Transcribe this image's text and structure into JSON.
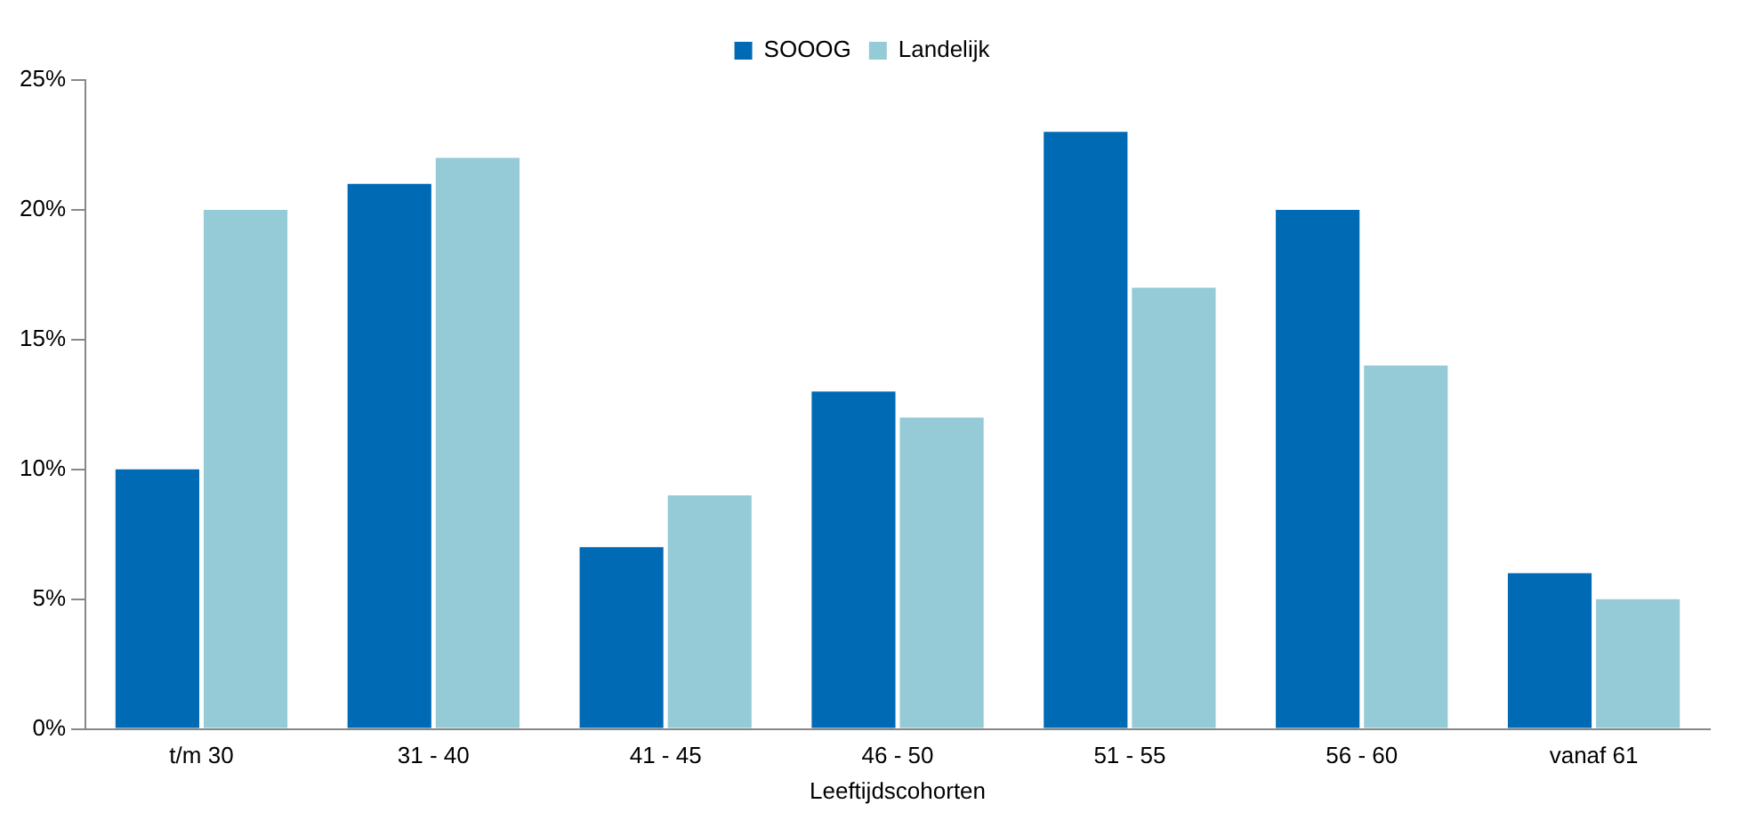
{
  "chart_data": {
    "type": "bar",
    "xlabel": "Leeftijdscohorten",
    "categories": [
      "t/m 30",
      "31 - 40",
      "41 - 45",
      "46 - 50",
      "51 - 55",
      "56 - 60",
      "vanaf 61"
    ],
    "series": [
      {
        "name": "SOOOG",
        "color": "#006ab4",
        "values": [
          10,
          21,
          7,
          13,
          23,
          20,
          6
        ]
      },
      {
        "name": "Landelijk",
        "color": "#95cad7",
        "values": [
          20,
          22,
          9,
          12,
          17,
          14,
          5
        ]
      }
    ],
    "ylim": [
      0,
      25
    ],
    "yticks": [
      {
        "value": 0,
        "label": "0%"
      },
      {
        "value": 5,
        "label": "5%"
      },
      {
        "value": 10,
        "label": "10%"
      },
      {
        "value": 15,
        "label": "15%"
      },
      {
        "value": 20,
        "label": "20%"
      },
      {
        "value": 25,
        "label": "25%"
      }
    ],
    "grid": false,
    "legend": "top"
  }
}
